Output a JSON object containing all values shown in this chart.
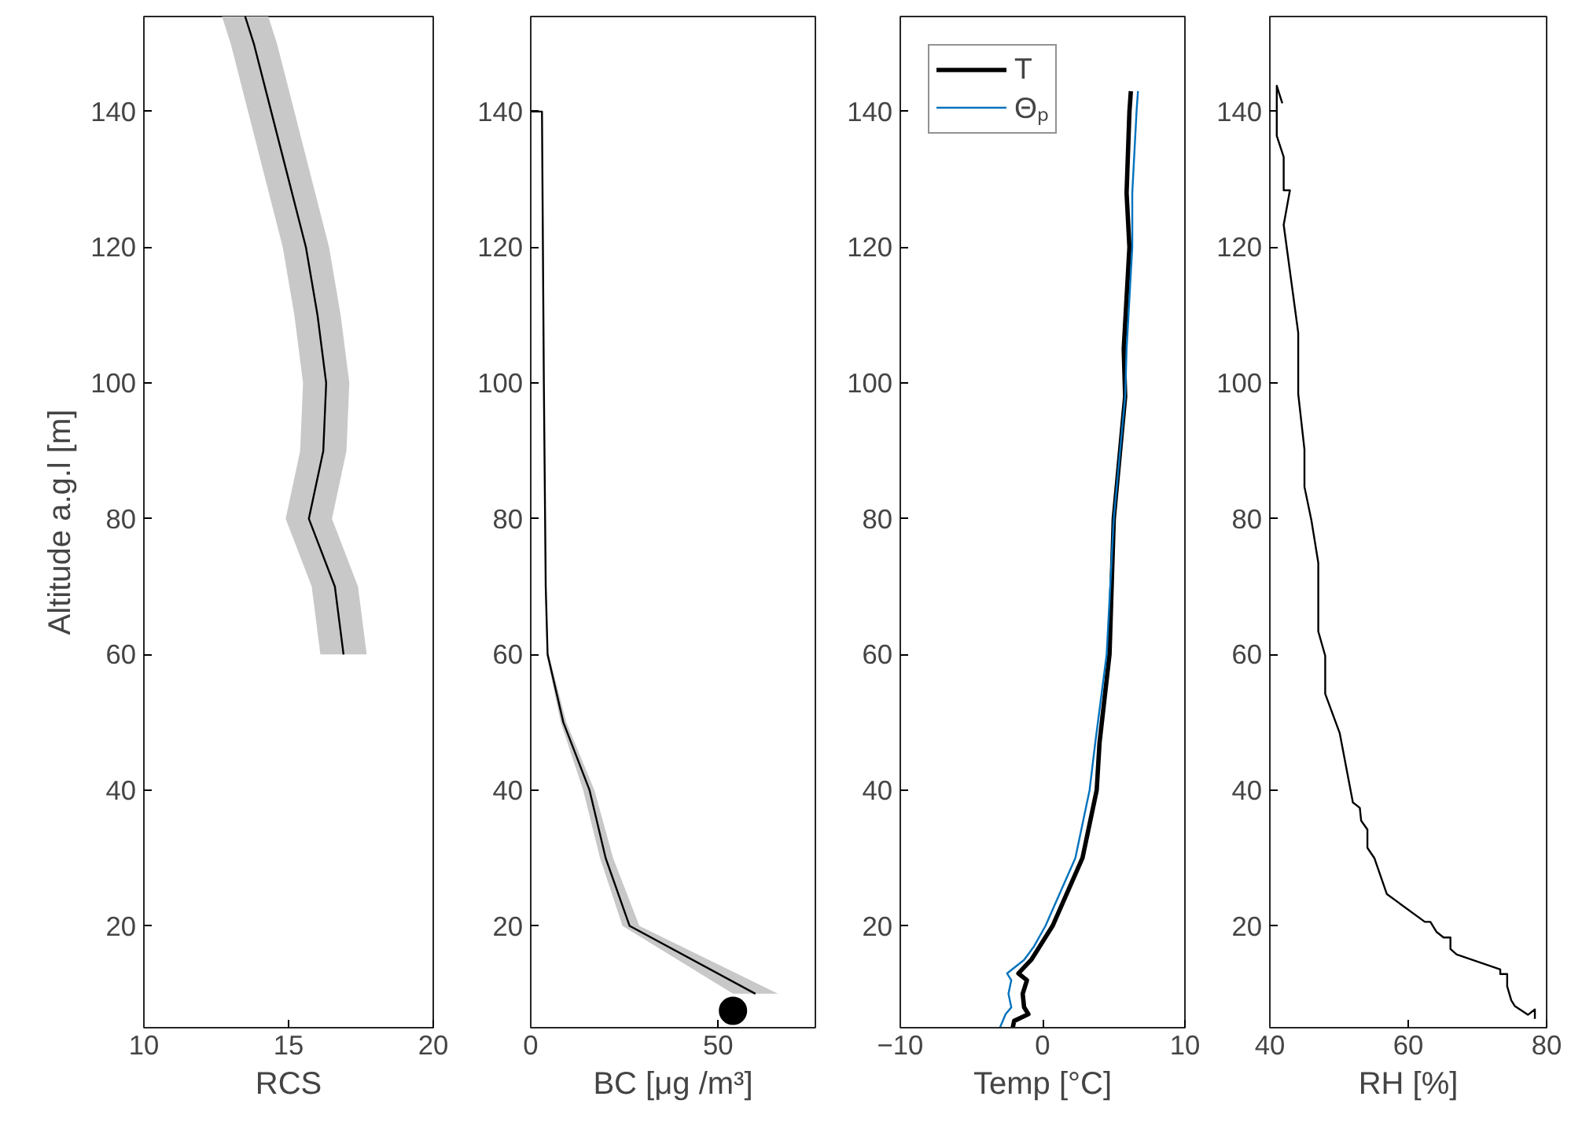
{
  "chart_data": [
    {
      "type": "line",
      "orientation": "horizontal",
      "xlabel": "RCS",
      "ylabel": "Altitude a.g.l [m]",
      "xlim": [
        10,
        20
      ],
      "xticks": [
        10,
        15,
        20
      ],
      "ylim": [
        5,
        154
      ],
      "yticks": [
        20,
        40,
        60,
        80,
        100,
        120,
        140
      ],
      "series": [
        {
          "color": "#000000",
          "x": [
            60,
            70,
            80,
            90,
            100,
            110,
            120,
            130,
            140,
            150,
            154
          ],
          "values": [
            16.9,
            16.6,
            15.7,
            16.2,
            16.3,
            16.0,
            15.6,
            15.0,
            14.4,
            13.8,
            13.5
          ],
          "lower": [
            16.1,
            15.8,
            14.9,
            15.4,
            15.5,
            15.2,
            14.8,
            14.2,
            13.6,
            13.0,
            12.7
          ],
          "upper": [
            17.7,
            17.4,
            16.5,
            17.0,
            17.1,
            16.8,
            16.4,
            15.8,
            15.2,
            14.6,
            14.3
          ]
        }
      ]
    },
    {
      "type": "line",
      "orientation": "horizontal",
      "xlabel": "BC [μg /m³]",
      "xlim": [
        0,
        76
      ],
      "xticks": [
        0,
        50
      ],
      "ylim": [
        5,
        154
      ],
      "yticks": [
        20,
        40,
        60,
        80,
        100,
        120,
        140
      ],
      "series": [
        {
          "color": "#000000",
          "x": [
            140,
            140,
            100,
            70,
            60,
            50,
            40,
            30,
            20,
            10
          ],
          "values": [
            0,
            3,
            3.5,
            4,
            4.5,
            8.7,
            15.7,
            20,
            26.4,
            60
          ],
          "lower": [
            null,
            null,
            null,
            null,
            4.2,
            8,
            14,
            18.5,
            24.5,
            54
          ],
          "upper": [
            null,
            null,
            null,
            null,
            4.8,
            9.5,
            17,
            22,
            29,
            66
          ]
        },
        {
          "type": "scatter",
          "marker": "circle",
          "color": "#000000",
          "x": [
            7.5
          ],
          "values": [
            54
          ]
        }
      ]
    },
    {
      "type": "line",
      "orientation": "horizontal",
      "xlabel": "Temp [°C]",
      "xlim": [
        -10,
        10
      ],
      "xticks": [
        -10,
        0,
        10
      ],
      "ylim": [
        5,
        154
      ],
      "yticks": [
        20,
        40,
        60,
        80,
        100,
        120,
        140
      ],
      "legend": "top left",
      "series": [
        {
          "name": "T",
          "color": "#000000",
          "x": [
            143,
            140,
            128,
            120,
            105,
            98,
            80,
            60,
            47,
            40,
            30,
            20,
            17,
            15,
            13,
            12,
            10,
            8,
            7,
            6,
            5
          ],
          "values": [
            6.2,
            6.1,
            5.9,
            6.1,
            5.7,
            5.8,
            5.0,
            4.7,
            4.0,
            3.8,
            2.8,
            0.7,
            -0.2,
            -0.8,
            -1.7,
            -1.1,
            -1.4,
            -1.3,
            -1.0,
            -2.0,
            -2.1
          ]
        },
        {
          "name": "Θₚ",
          "color": "#0072bd",
          "x": [
            143,
            140,
            128,
            120,
            105,
            98,
            80,
            60,
            47,
            40,
            30,
            20,
            17,
            15,
            13,
            12,
            10,
            8,
            7,
            5
          ],
          "values": [
            6.7,
            6.6,
            6.3,
            6.3,
            5.9,
            5.8,
            5.0,
            4.5,
            3.7,
            3.3,
            2.3,
            0.2,
            -0.6,
            -1.3,
            -2.5,
            -2.2,
            -2.4,
            -2.2,
            -2.6,
            -3.0
          ]
        }
      ]
    },
    {
      "type": "line",
      "orientation": "horizontal",
      "xlabel": "RH [%]",
      "xlim": [
        40,
        80
      ],
      "xticks": [
        40,
        60,
        80
      ],
      "ylim": [
        5,
        154
      ],
      "yticks": [
        20,
        40,
        60,
        80,
        100,
        120,
        140
      ],
      "series": [
        {
          "color": "#000000",
          "x": [
            141.2,
            143.8,
            136.4,
            133.3,
            128.4,
            128.4,
            123.3,
            107.4,
            98.4,
            90.2,
            84.7,
            79.8,
            73.5,
            63.4,
            59.8,
            54.2,
            48.4,
            38.2,
            37.4,
            35.5,
            34.2,
            31.5,
            30.0,
            24.7,
            20.6,
            20.6,
            19.1,
            18.3,
            18.3,
            16.6,
            15.8,
            13.6,
            12.9,
            12.9,
            11.1,
            9.0,
            8.2,
            6.9,
            7.7,
            6.3
          ],
          "values": [
            41.8,
            41.0,
            41.0,
            42.0,
            42.0,
            42.9,
            42.0,
            44.1,
            44.1,
            45.0,
            45.0,
            46.0,
            47.0,
            47.0,
            48.0,
            48.0,
            50.1,
            52.0,
            53.0,
            53.2,
            54.1,
            54.1,
            55.1,
            56.9,
            62.4,
            63.2,
            64.1,
            65.1,
            66.1,
            66.1,
            67.0,
            73.3,
            73.3,
            74.3,
            74.3,
            74.9,
            75.4,
            77.3,
            78.3,
            78.3
          ]
        }
      ]
    }
  ]
}
